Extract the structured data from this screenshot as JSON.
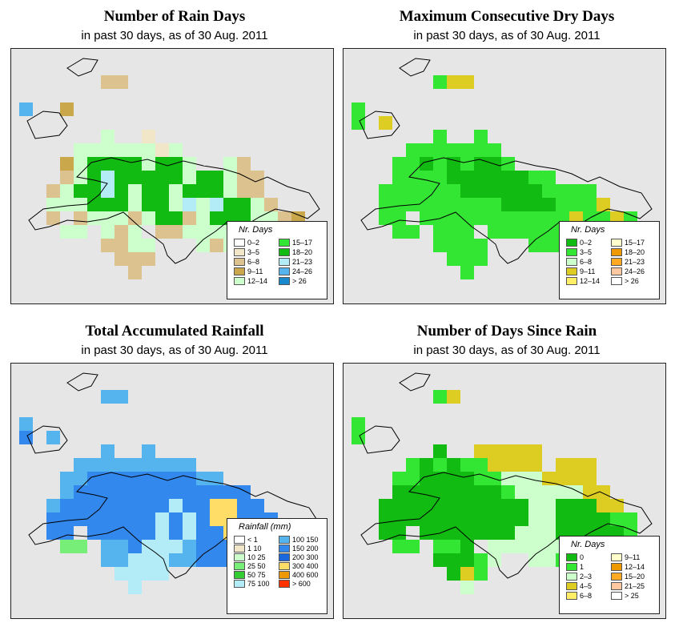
{
  "panels": [
    {
      "id": "rain_days",
      "title": "Number of Rain Days",
      "subtitle": "in past 30 days, as of  30 Aug. 2011",
      "legend": {
        "title": "Nr. Days",
        "items": [
          {
            "label": "0–2",
            "color": "#ffffff"
          },
          {
            "label": "3–5",
            "color": "#f2e6c8"
          },
          {
            "label": "6–8",
            "color": "#dcc28e"
          },
          {
            "label": "9–11",
            "color": "#c9a74a"
          },
          {
            "label": "12–14",
            "color": "#ccffcc"
          },
          {
            "label": "15–17",
            "color": "#33e633"
          },
          {
            "label": "18–20",
            "color": "#11bb11"
          },
          {
            "label": "21–23",
            "color": "#b3ecf7"
          },
          {
            "label": "24–26",
            "color": "#55b3ee"
          },
          {
            "label": "> 26",
            "color": "#1a88cc"
          }
        ]
      },
      "grid": [
        "...........",
        "......dd....",
        "..........",
        "x..m......",
        "......................",
        "......g..e.......",
        "....ggggggeg.......",
        "...mgGGGGgGGg..gd...",
        "...pgGlGGGGGgGGgpd..",
        "..pgGGlGgGGgGGGgpp",
        "..gggGGGgGGglglGGgp..",
        "..p.pgggpgGGpgGGGggpm",
        "...gg.gpg.ppgggg.g..",
        "......ppgg...gpg.g..",
        ".......ppp...........",
        "........p............"
      ]
    },
    {
      "id": "dry_days",
      "title": "Maximum Consecutive Dry Days",
      "subtitle": "in past 30 days, as of  30 Aug. 2011",
      "legend": {
        "title": "Nr. Days",
        "items": [
          {
            "label": "0–2",
            "color": "#11bb11"
          },
          {
            "label": "3–5",
            "color": "#33e633"
          },
          {
            "label": "6–8",
            "color": "#ccffcc"
          },
          {
            "label": "9–11",
            "color": "#ddcc22"
          },
          {
            "label": "12–14",
            "color": "#ffee66"
          },
          {
            "label": "15–17",
            "color": "#ffffcc"
          },
          {
            "label": "18–20",
            "color": "#ee9900"
          },
          {
            "label": "21–23",
            "color": "#ffaa22"
          },
          {
            "label": "24–26",
            "color": "#ffc8a0"
          },
          {
            "label": "> 26",
            "color": "#ffffff"
          }
        ]
      },
      "grid": [
        "...........",
        "......gyy...",
        "..........",
        "g.........",
        "g.y...................",
        "......g..g.......",
        "....ggggggg........",
        "...ggGgGgGGg........",
        "...ggggGGGGGGgg.....",
        "..ggggggGGGGGGgggg",
        "..gggggggggGGGGgggy..",
        "..gg.gggggggggggyggyg",
        "...gg.ggg.ggggggg.g.",
        "......gggg...ggg.gy.",
        ".......ggg...........",
        "........g............"
      ]
    },
    {
      "id": "rainfall",
      "title": "Total Accumulated Rainfall",
      "subtitle": "in past 30 days, as of  30 Aug. 2011",
      "legend": {
        "title": "Rainfall (mm)",
        "items": [
          {
            "label": "< 1",
            "color": "#ffffff"
          },
          {
            "label": "1  10",
            "color": "#f2e6c8"
          },
          {
            "label": "10  25",
            "color": "#ccffcc"
          },
          {
            "label": "25  50",
            "color": "#77ee77"
          },
          {
            "label": "50  75",
            "color": "#33cc33"
          },
          {
            "label": "75  100",
            "color": "#b3ecf7"
          },
          {
            "label": "100  150",
            "color": "#55b3ee"
          },
          {
            "label": "150  200",
            "color": "#3388ee"
          },
          {
            "label": "200  300",
            "color": "#1a66dd"
          },
          {
            "label": "300  400",
            "color": "#ffdd66"
          },
          {
            "label": "400  600",
            "color": "#ee9900"
          },
          {
            "label": "> 600",
            "color": "#ff3300"
          }
        ]
      },
      "grid": [
        "...........",
        "......bb....",
        "..........",
        "b.........",
        "B.b...................",
        "......b..b.......",
        "....bbbbbbbbb.......",
        "...bbBBBBBBBBbb.....",
        "...bBBBBBBBBBBBBB...",
        "..bBBBBBBBBlBByyBB.",
        "..BBBBBBBBlBlByyBBB..",
        "..BB.BBBBBlBlBByyyBBy",
        "...gg.bbBlllbBBBBBBy",
        "......bblllbbBBB.B..",
        ".......llll..........",
        "........l............"
      ]
    },
    {
      "id": "days_since_rain",
      "title": "Number of Days Since Rain",
      "subtitle": "in past 30 days, as of  30 Aug. 2011",
      "legend": {
        "title": "Nr. Days",
        "items": [
          {
            "label": "0",
            "color": "#11bb11"
          },
          {
            "label": "1",
            "color": "#33e633"
          },
          {
            "label": "2–3",
            "color": "#ccffcc"
          },
          {
            "label": "4–5",
            "color": "#ddcc22"
          },
          {
            "label": "6–8",
            "color": "#ffee66"
          },
          {
            "label": "9–11",
            "color": "#ffffcc"
          },
          {
            "label": "12–14",
            "color": "#ee9900"
          },
          {
            "label": "15–20",
            "color": "#ffaa22"
          },
          {
            "label": "21–25",
            "color": "#ffc8a0"
          },
          {
            "label": "> 25",
            "color": "#ffffff"
          }
        ]
      },
      "grid": [
        "...........",
        "......gy....",
        "..........",
        "g.........",
        "g.........",
        "......G..yyyyy.....",
        "....gGgGggyyyy.yyy..",
        "...ggGGGGgglllyyyy...",
        "...GGGGGGGGglllllyy.",
        "..GGGGGGGGGGGllGGGyy",
        "..GGGGGGGGGGGllGGGGgg",
        "..GG.GGGGGGGlllGGGGGg",
        "...gg.ggG.lllllllgg.",
        "......GGGgl..llg.g..",
        ".......Gyg...........",
        "........l............"
      ]
    }
  ]
}
